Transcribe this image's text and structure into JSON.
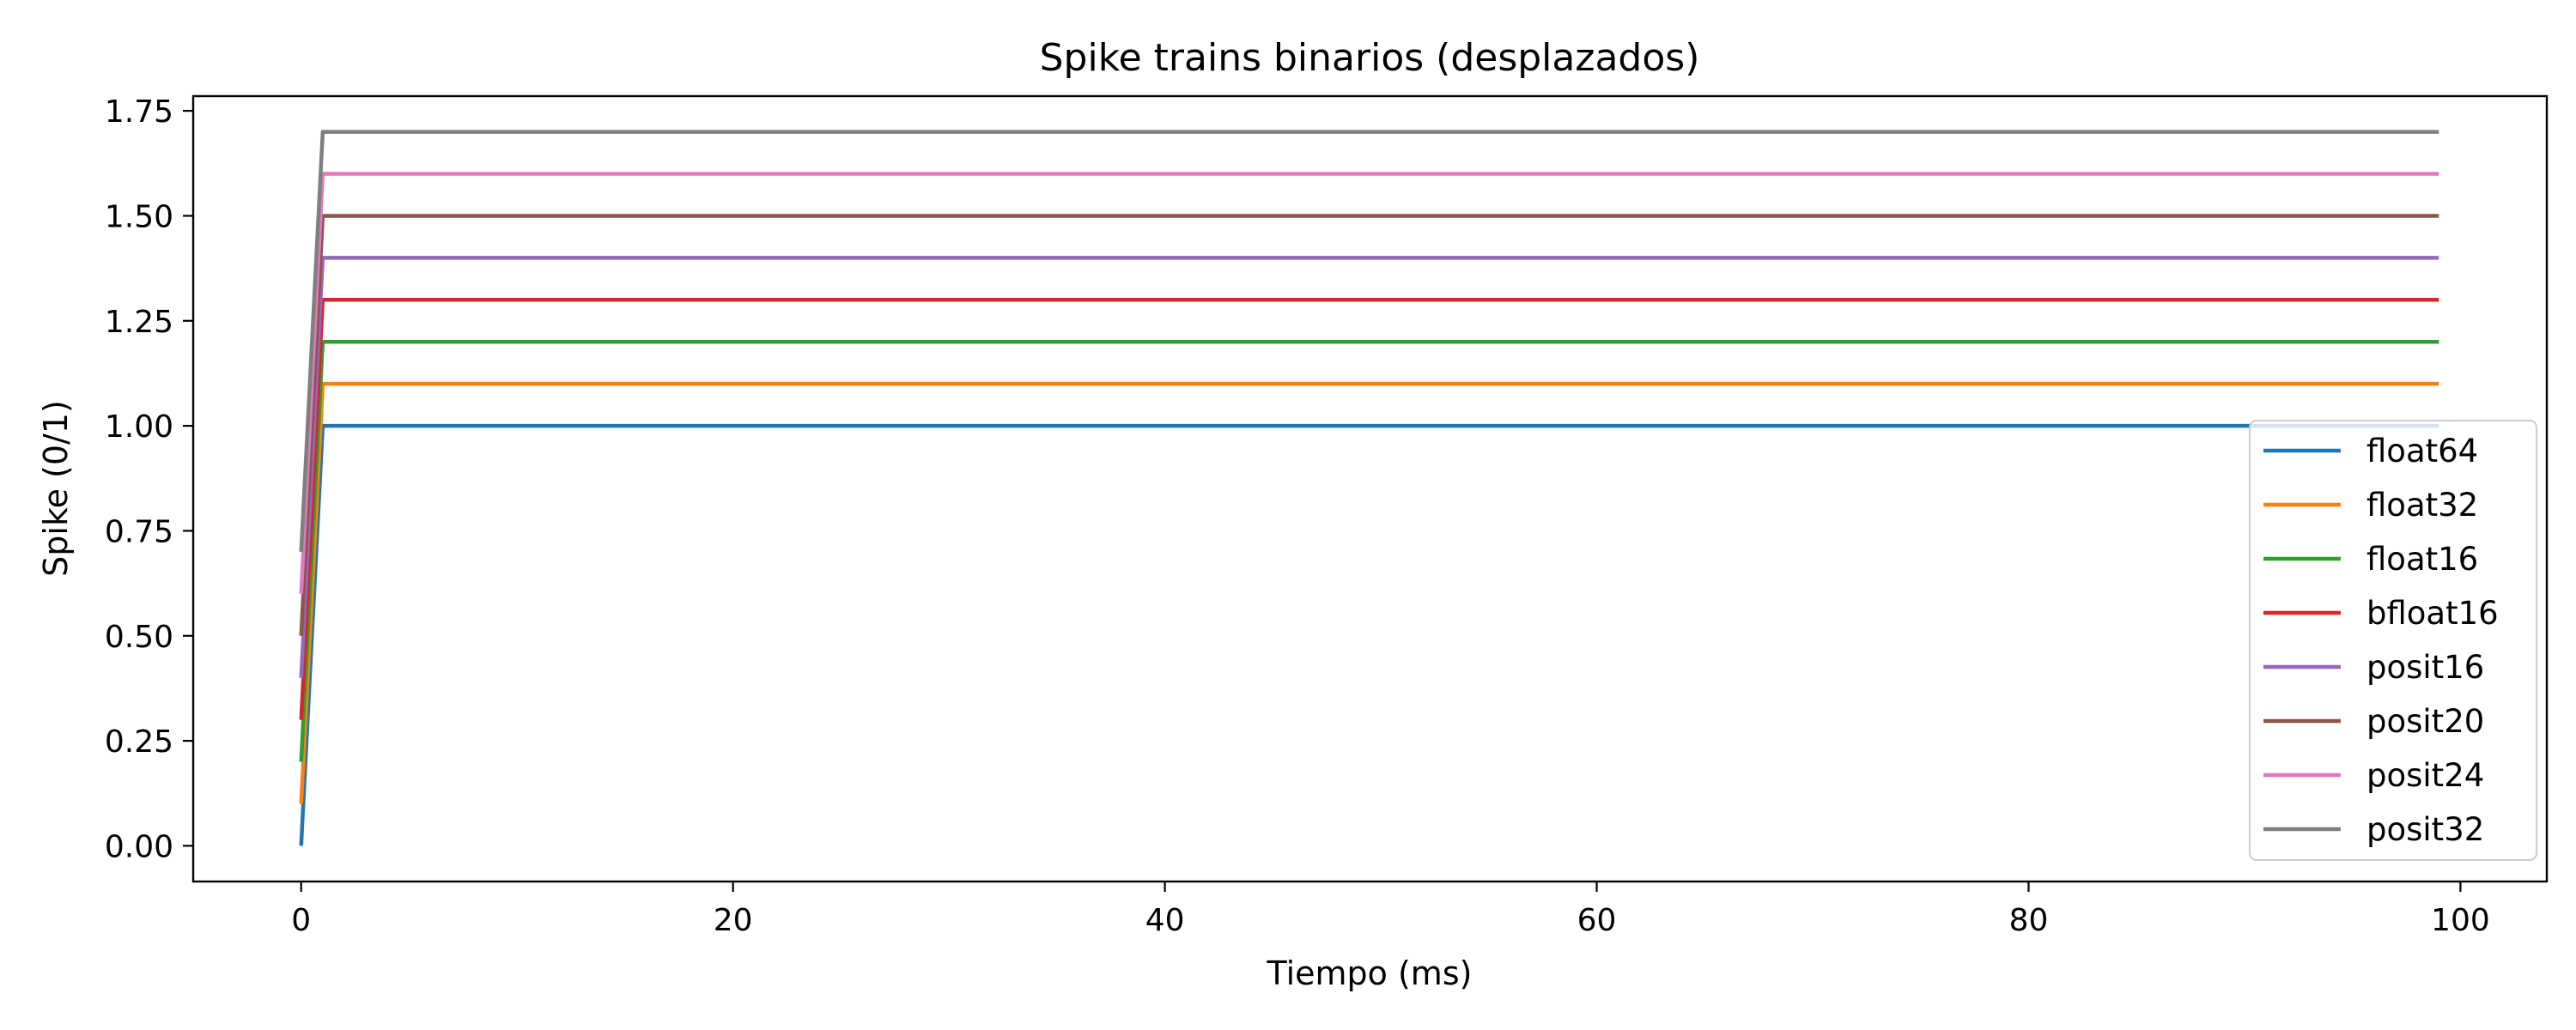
{
  "chart_data": {
    "type": "line",
    "title": "Spike trains binarios (desplazados)",
    "xlabel": "Tiempo (ms)",
    "ylabel": "Spike (0/1)",
    "xlim": [
      -5,
      104
    ],
    "ylim": [
      -0.085,
      1.785
    ],
    "x_ticks": [
      0,
      20,
      40,
      60,
      80,
      100
    ],
    "y_ticks": [
      0.0,
      0.25,
      0.5,
      0.75,
      1.0,
      1.25,
      1.5,
      1.75
    ],
    "y_tick_labels": [
      "0.00",
      "0.25",
      "0.50",
      "0.75",
      "1.00",
      "1.25",
      "1.50",
      "1.75"
    ],
    "x_tick_labels": [
      "0",
      "20",
      "40",
      "60",
      "80",
      "100"
    ],
    "grid": false,
    "legend_position": "lower-right",
    "series": [
      {
        "name": "float64",
        "color": "#1f77b4",
        "x": [
          0,
          1,
          99
        ],
        "y": [
          0.0,
          1.0,
          1.0
        ]
      },
      {
        "name": "float32",
        "color": "#ff7f0e",
        "x": [
          0,
          1,
          99
        ],
        "y": [
          0.1,
          1.1,
          1.1
        ]
      },
      {
        "name": "float16",
        "color": "#2ca02c",
        "x": [
          0,
          1,
          99
        ],
        "y": [
          0.2,
          1.2,
          1.2
        ]
      },
      {
        "name": "bfloat16",
        "color": "#d62728",
        "x": [
          0,
          1,
          99
        ],
        "y": [
          0.3,
          1.3,
          1.3
        ]
      },
      {
        "name": "posit16",
        "color": "#9467bd",
        "x": [
          0,
          1,
          99
        ],
        "y": [
          0.4,
          1.4,
          1.4
        ]
      },
      {
        "name": "posit20",
        "color": "#8c564b",
        "x": [
          0,
          1,
          99
        ],
        "y": [
          0.5,
          1.5,
          1.5
        ]
      },
      {
        "name": "posit24",
        "color": "#e377c2",
        "x": [
          0,
          1,
          99
        ],
        "y": [
          0.6,
          1.6,
          1.6
        ]
      },
      {
        "name": "posit32",
        "color": "#7f7f7f",
        "x": [
          0,
          1,
          99
        ],
        "y": [
          0.7,
          1.7,
          1.7
        ]
      }
    ]
  }
}
